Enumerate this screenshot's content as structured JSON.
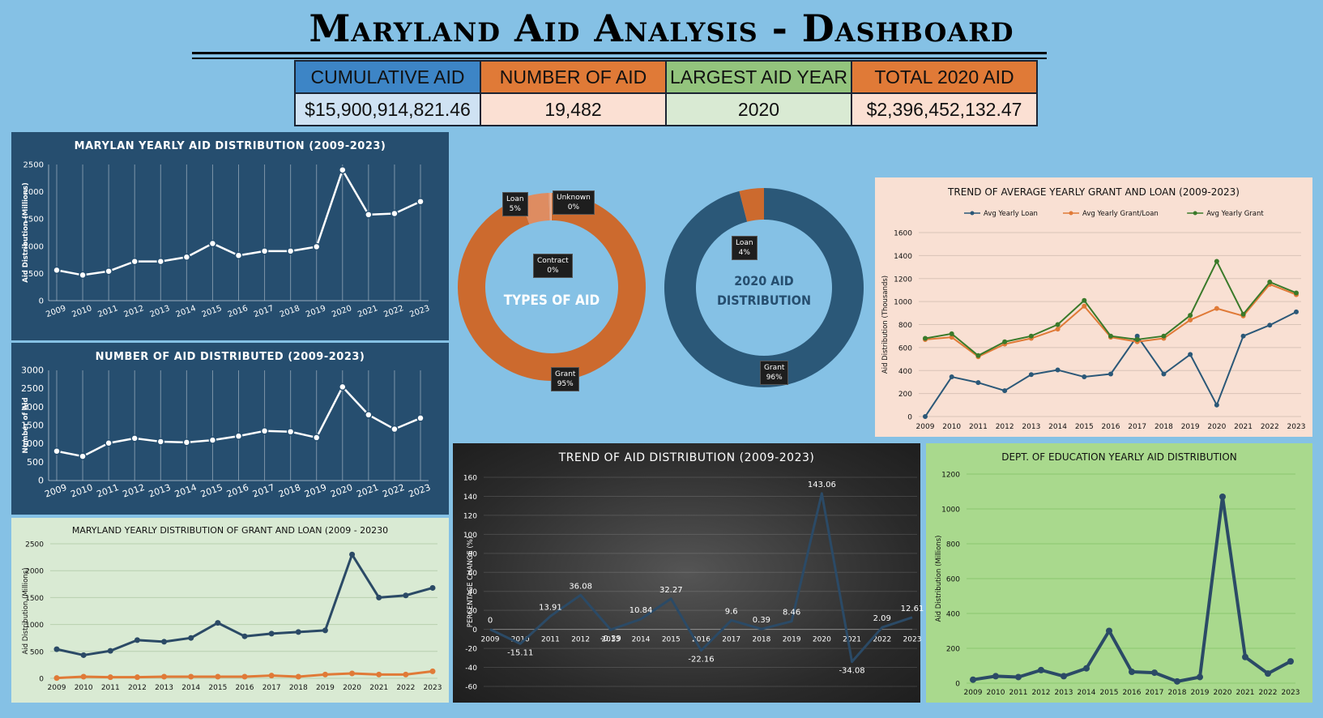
{
  "title": "Maryland Aid Analysis - Dashboard",
  "kpis": [
    {
      "label": "CUMULATIVE AID",
      "value": "$15,900,914,821.46",
      "head_color": "#3d85c6",
      "cell_color": "#cfe2f3"
    },
    {
      "label": "NUMBER OF AID",
      "value": "19,482",
      "head_color": "#e07a37",
      "cell_color": "#fbe0d3"
    },
    {
      "label": "LARGEST AID YEAR",
      "value": "2020",
      "head_color": "#93c47d",
      "cell_color": "#d9ead3"
    },
    {
      "label": "TOTAL 2020 AID",
      "value": "$2,396,452,132.47",
      "head_color": "#e07a37",
      "cell_color": "#fbe0d3"
    }
  ],
  "donut1": {
    "center_label": "TYPES OF AID",
    "slices": [
      {
        "label": "Grant",
        "pct": "95%",
        "value": 95,
        "color": "#cc6a2e"
      },
      {
        "label": "Loan",
        "pct": "5%",
        "value": 5,
        "color": "#de8c61"
      },
      {
        "label": "Unknown",
        "pct": "0%",
        "value": 0.3,
        "color": "#e8a17e"
      },
      {
        "label": "Contract",
        "pct": "0%",
        "value": 0.2,
        "color": "#f0b79a"
      }
    ]
  },
  "donut2": {
    "center_label": "2020 AID DISTRIBUTION",
    "slices": [
      {
        "label": "Grant",
        "pct": "96%",
        "value": 96,
        "color": "#2b5878"
      },
      {
        "label": "Loan",
        "pct": "4%",
        "value": 4,
        "color": "#cc6a2e"
      }
    ]
  },
  "chart_data": [
    {
      "id": "c1",
      "type": "line",
      "title": "MARYLAN YEARLY AID DISTRIBUTION (2009-2023)",
      "xlabel": "",
      "ylabel": "Aid Distribution (Millions)",
      "categories": [
        "2009",
        "2010",
        "2011",
        "2012",
        "2013",
        "2014",
        "2015",
        "2016",
        "2017",
        "2018",
        "2019",
        "2020",
        "2021",
        "2022",
        "2023"
      ],
      "ylim": [
        0,
        2500
      ],
      "yticks": [
        0,
        500,
        1000,
        1500,
        2000,
        2500
      ],
      "grid": "vertical",
      "series": [
        {
          "color": "#ffffff",
          "values": [
            560,
            470,
            540,
            720,
            720,
            800,
            1050,
            830,
            910,
            910,
            990,
            2400,
            1580,
            1600,
            1820
          ]
        }
      ]
    },
    {
      "id": "c2",
      "type": "line",
      "title": "NUMBER OF AID DISTRIBUTED (2009-2023)",
      "xlabel": "",
      "ylabel": "Number of Aid",
      "categories": [
        "2009",
        "2010",
        "2011",
        "2012",
        "2013",
        "2014",
        "2015",
        "2016",
        "2017",
        "2018",
        "2019",
        "2020",
        "2021",
        "2022",
        "2023"
      ],
      "ylim": [
        0,
        3000
      ],
      "yticks": [
        0,
        500,
        1000,
        1500,
        2000,
        2500,
        3000
      ],
      "grid": "vertical",
      "series": [
        {
          "color": "#ffffff",
          "values": [
            800,
            660,
            1020,
            1150,
            1060,
            1040,
            1100,
            1210,
            1350,
            1330,
            1170,
            2550,
            1790,
            1400,
            1700
          ]
        }
      ]
    },
    {
      "id": "c3",
      "type": "line",
      "title": "MARYLAND YEARLY DISTRIBUTION OF GRANT AND LOAN (2009 - 20230",
      "xlabel": "",
      "ylabel": "Aid Distribution (Millions)",
      "categories": [
        "2009",
        "2010",
        "2011",
        "2012",
        "2013",
        "2014",
        "2015",
        "2016",
        "2017",
        "2018",
        "2019",
        "2020",
        "2021",
        "2022",
        "2023"
      ],
      "ylim": [
        0,
        2500
      ],
      "yticks": [
        0,
        500,
        1000,
        1500,
        2000,
        2500
      ],
      "grid": "horizontal",
      "series": [
        {
          "color": "#2b4a66",
          "values": [
            540,
            430,
            510,
            710,
            680,
            750,
            1030,
            780,
            830,
            860,
            890,
            2300,
            1500,
            1540,
            1680
          ]
        },
        {
          "color": "#e07a37",
          "values": [
            5,
            30,
            20,
            20,
            30,
            30,
            30,
            30,
            50,
            30,
            70,
            90,
            70,
            70,
            130
          ]
        }
      ]
    },
    {
      "id": "c4",
      "type": "line",
      "title": "TREND OF AVERAGE YEARLY GRANT AND LOAN (2009-2023)",
      "xlabel": "",
      "ylabel": "Aid Distribution (Thousands)",
      "categories": [
        "2009",
        "2010",
        "2011",
        "2012",
        "2013",
        "2014",
        "2015",
        "2016",
        "2017",
        "2018",
        "2019",
        "2020",
        "2021",
        "2022",
        "2023"
      ],
      "ylim": [
        0,
        1600
      ],
      "yticks": [
        0,
        200,
        400,
        600,
        800,
        1000,
        1200,
        1400,
        1600
      ],
      "grid": "horizontal",
      "legend": "top",
      "series": [
        {
          "name": "Avg Yearly Loan",
          "color": "#2b5878",
          "values": [
            0,
            345,
            295,
            225,
            365,
            405,
            345,
            370,
            700,
            370,
            540,
            100,
            700,
            795,
            910
          ]
        },
        {
          "name": "Avg Yearly Grant/Loan",
          "color": "#e07a37",
          "values": [
            670,
            690,
            520,
            630,
            680,
            760,
            960,
            690,
            650,
            680,
            840,
            940,
            875,
            1150,
            1060
          ]
        },
        {
          "name": "Avg Yearly Grant",
          "color": "#3a7a2a",
          "values": [
            680,
            720,
            530,
            650,
            700,
            800,
            1010,
            700,
            670,
            700,
            880,
            1350,
            890,
            1170,
            1075
          ]
        }
      ]
    },
    {
      "id": "c5",
      "type": "line",
      "title": "TREND OF AID DISTRIBUTION (2009-2023)",
      "xlabel": "",
      "ylabel": "PERCENTAGE CHANGE (%)",
      "categories": [
        "2009",
        "2010",
        "2011",
        "2012",
        "2013",
        "2014",
        "2015",
        "2016",
        "2017",
        "2018",
        "2019",
        "2020",
        "2021",
        "2022",
        "2023"
      ],
      "ylim": [
        -60,
        160
      ],
      "yticks": [
        -60,
        -40,
        -20,
        0,
        20,
        40,
        60,
        80,
        100,
        120,
        140,
        160
      ],
      "grid": "horizontal",
      "series": [
        {
          "color": "#2b4a66",
          "values": [
            0,
            -15.11,
            13.91,
            36.08,
            -0.39,
            10.84,
            32.27,
            -22.16,
            9.6,
            0.39,
            8.46,
            143.06,
            -34.08,
            2.09,
            12.61
          ]
        }
      ],
      "data_labels": [
        "0",
        "-15.11",
        "13.91",
        "36.08",
        "-0.39",
        "10.84",
        "32.27",
        "-22.16",
        "9.6",
        "0.39",
        "8.46",
        "143.06",
        "-34.08",
        "2.09",
        "12.61"
      ]
    },
    {
      "id": "c6",
      "type": "line",
      "title": "DEPT. OF EDUCATION YEARLY AID DISTRIBUTION",
      "xlabel": "",
      "ylabel": "Aid Distribution (Millions)",
      "categories": [
        "2009",
        "2010",
        "2011",
        "2012",
        "2013",
        "2014",
        "2015",
        "2016",
        "2017",
        "2018",
        "2019",
        "2020",
        "2021",
        "2022",
        "2023"
      ],
      "ylim": [
        0,
        1200
      ],
      "yticks": [
        0,
        200,
        400,
        600,
        800,
        1000,
        1200
      ],
      "grid": "horizontal",
      "series": [
        {
          "color": "#2b4a66",
          "values": [
            20,
            40,
            35,
            75,
            40,
            85,
            300,
            65,
            60,
            10,
            35,
            1070,
            150,
            55,
            125
          ]
        }
      ]
    }
  ]
}
